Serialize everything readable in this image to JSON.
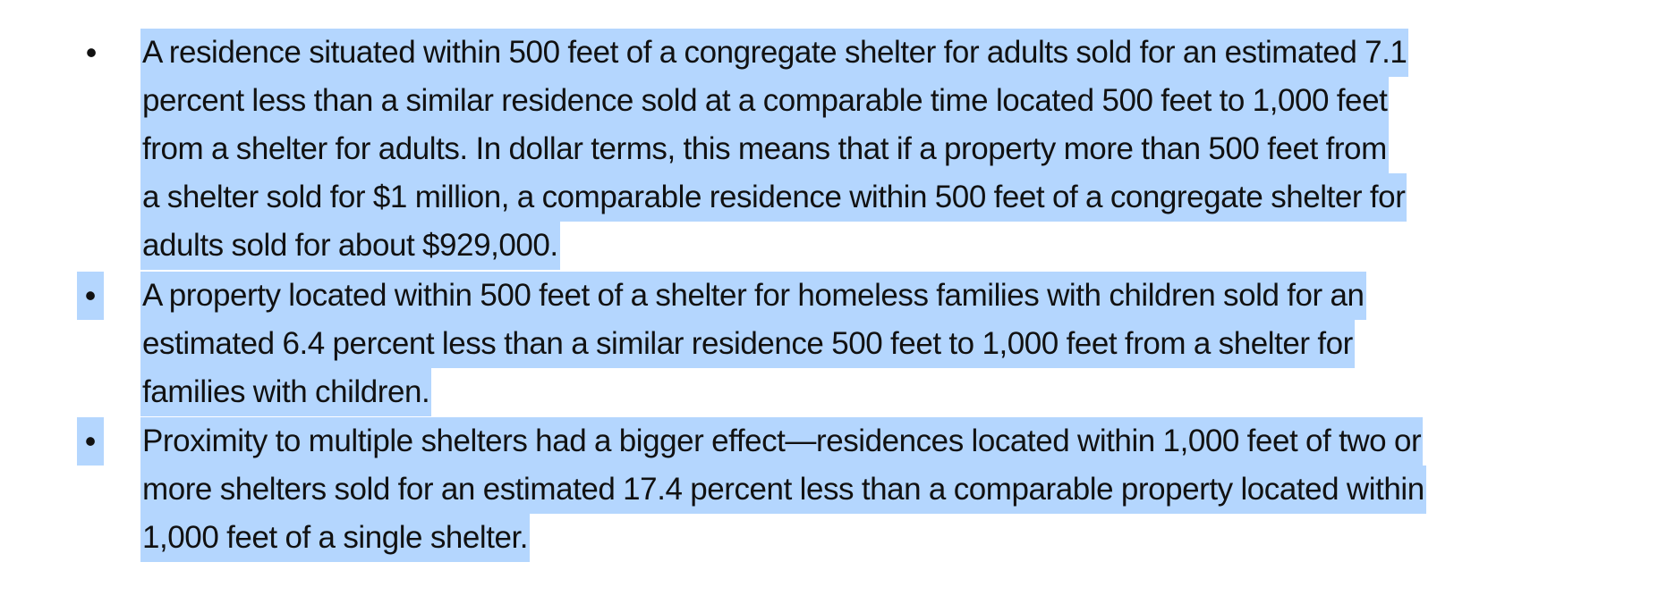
{
  "document": {
    "bullets": [
      {
        "marker": "•",
        "lines": [
          "A residence situated within 500 feet of a congregate shelter for adults sold for an estimated 7.1",
          "percent less than a similar residence sold at a comparable time located 500 feet to 1,000 feet",
          "from a shelter for adults. In dollar terms, this means that if a property more than 500 feet from",
          "a shelter sold for $1 million, a comparable residence within 500 feet of a congregate shelter for",
          "adults sold for about $929,000."
        ]
      },
      {
        "marker": "•",
        "lines": [
          "A property located within 500 feet of a shelter for homeless families with children sold for an",
          "estimated 6.4 percent less than a similar residence 500 feet to 1,000 feet from a shelter for",
          "families with children."
        ]
      },
      {
        "marker": "•",
        "lines": [
          "Proximity to multiple shelters had a bigger effect—residences located within 1,000 feet of two or",
          "more shelters sold for an estimated 17.4 percent less than a comparable property located within",
          "1,000 feet of a single shelter."
        ]
      }
    ],
    "selection_color": "#b4d6fe"
  }
}
